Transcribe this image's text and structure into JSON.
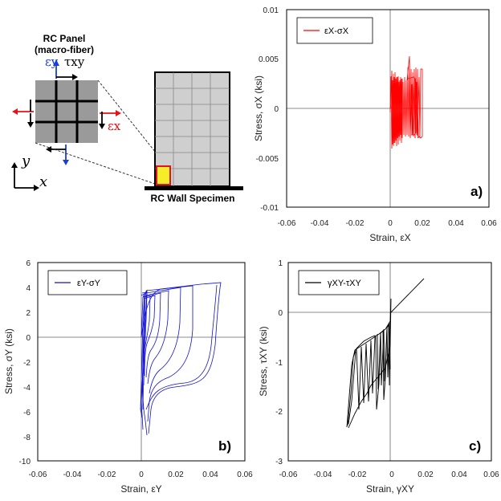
{
  "diagram": {
    "panel_title_1": "RC Panel",
    "panel_title_2": "(macro-fiber)",
    "wall_label": "RC Wall Specimen",
    "sym_ey": "εy",
    "sym_txy": "τxy",
    "sym_ex": "εx",
    "axis_y": "y",
    "axis_x": "x",
    "colors": {
      "red": "#e8101a",
      "blue": "#1a3fd8",
      "yellow": "#f6ec2a",
      "wall_fill": "#cfcfcf"
    }
  },
  "chart_data": [
    {
      "id": "a",
      "type": "line",
      "panel_label": "a)",
      "xlabel": "Strain, εX",
      "ylabel": "Stress, σX (ksi)",
      "xlim": [
        -0.06,
        0.06
      ],
      "ylim": [
        -0.01,
        0.01
      ],
      "xticks": [
        "-0.06",
        "-0.04",
        "-0.02",
        "0",
        "0.02",
        "0.04",
        "0.06"
      ],
      "yticks": [
        "-0.01",
        "-0.005",
        "0",
        "0.005",
        "0.01"
      ],
      "legend": "εX-σX",
      "series": [
        {
          "name": "εX-σX",
          "color": "#ff0000"
        }
      ]
    },
    {
      "id": "b",
      "type": "line",
      "panel_label": "b)",
      "xlabel": "Strain, εY",
      "ylabel": "Stress, σY (ksi)",
      "xlim": [
        -0.06,
        0.06
      ],
      "ylim": [
        -10,
        6
      ],
      "xticks": [
        "-0.06",
        "-0.04",
        "-0.02",
        "0",
        "0.02",
        "0.04",
        "0.06"
      ],
      "yticks": [
        "-10",
        "-8",
        "-6",
        "-4",
        "-2",
        "0",
        "2",
        "4",
        "6"
      ],
      "legend": "εY-σY",
      "series": [
        {
          "name": "εY-σY",
          "color": "#0000cc"
        }
      ]
    },
    {
      "id": "c",
      "type": "line",
      "panel_label": "c)",
      "xlabel": "Strain, γXY",
      "ylabel": "Stress, τXY (ksi)",
      "xlim": [
        -0.06,
        0.06
      ],
      "ylim": [
        -3,
        1
      ],
      "xticks": [
        "-0.06",
        "-0.04",
        "-0.02",
        "0",
        "0.02",
        "0.04",
        "0.06"
      ],
      "yticks": [
        "-3",
        "-2",
        "-1",
        "0",
        "1"
      ],
      "legend": "γXY-τXY",
      "series": [
        {
          "name": "γXY-τXY",
          "color": "#000000"
        }
      ]
    }
  ]
}
